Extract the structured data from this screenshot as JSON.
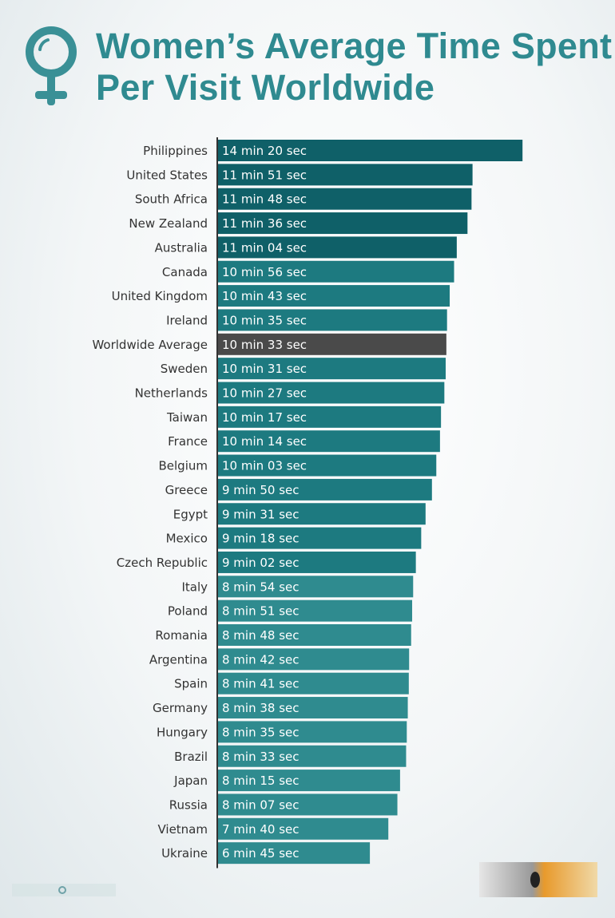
{
  "chart_data": {
    "type": "bar",
    "orientation": "horizontal",
    "title": "Women’s Average Time Spent Per Visit Worldwide",
    "categories": [
      "Philippines",
      "United States",
      "South Africa",
      "New Zealand",
      "Australia",
      "Canada",
      "United Kingdom",
      "Ireland",
      "Worldwide Average",
      "Sweden",
      "Netherlands",
      "Taiwan",
      "France",
      "Belgium",
      "Greece",
      "Egypt",
      "Mexico",
      "Czech Republic",
      "Italy",
      "Poland",
      "Romania",
      "Argentina",
      "Spain",
      "Germany",
      "Hungary",
      "Brazil",
      "Japan",
      "Russia",
      "Vietnam",
      "Ukraine"
    ],
    "labels": [
      "14 min 20 sec",
      "11 min 51 sec",
      "11 min 48 sec",
      "11 min 36 sec",
      "11 min 04 sec",
      "10 min 56 sec",
      "10 min 43 sec",
      "10 min 35 sec",
      "10 min 33 sec",
      "10 min 31 sec",
      "10 min 27 sec",
      "10 min 17 sec",
      "10 min 14 sec",
      "10 min 03 sec",
      "9 min 50 sec",
      "9 min 31 sec",
      "9 min 18 sec",
      "9 min 02 sec",
      "8 min 54 sec",
      "8 min 51 sec",
      "8 min 48 sec",
      "8 min 42 sec",
      "8 min 41 sec",
      "8 min 38 sec",
      "8 min 35 sec",
      "8 min 33 sec",
      "8 min 15 sec",
      "8 min 07 sec",
      "7 min 40 sec",
      "6 min 45 sec"
    ],
    "values_seconds": [
      860,
      711,
      708,
      696,
      664,
      656,
      643,
      635,
      633,
      631,
      627,
      617,
      614,
      603,
      590,
      571,
      558,
      542,
      534,
      531,
      528,
      522,
      521,
      518,
      515,
      513,
      495,
      487,
      460,
      405
    ],
    "colors": {
      "top": "#0f6068",
      "mid": "#1d7a80",
      "low": "#2f8b8f",
      "average": "#4a4a4a"
    },
    "grid": false,
    "legend": "none"
  },
  "icons": {
    "logo": "female-symbol-icon"
  }
}
